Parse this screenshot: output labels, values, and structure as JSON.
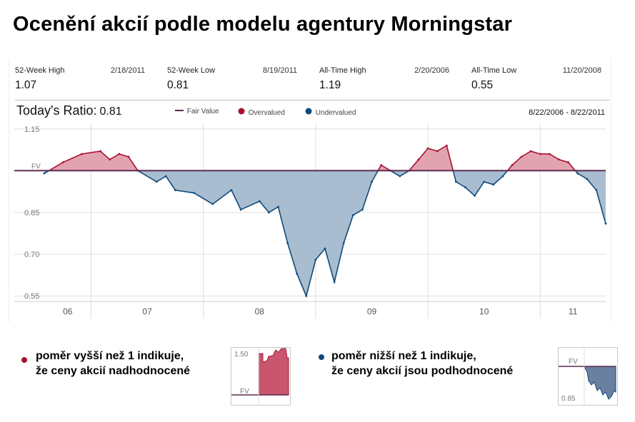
{
  "title": "Ocenění akcií podle modelu agentury Morningstar",
  "stats": [
    {
      "label": "52-Week High",
      "date": "2/18/2011",
      "value": "1.07"
    },
    {
      "label": "52-Week Low",
      "date": "8/19/2011",
      "value": "0.81"
    },
    {
      "label": "All-Time High",
      "date": "2/20/2006",
      "value": "1.19"
    },
    {
      "label": "All-Time Low",
      "date": "11/20/2008",
      "value": "0.55"
    }
  ],
  "ratio": {
    "label": "Today's Ratio:",
    "value": "0.81"
  },
  "legend": {
    "fair_value": "Fair Value",
    "overvalued": "Overvalued",
    "undervalued": "Undervalued"
  },
  "date_range": "8/22/2006 - 8/22/2011",
  "colors": {
    "overvalued": "#a8102f",
    "undervalued": "#0f4a7a",
    "fair_value": "#5a2b4f",
    "overvalued_fill": "#e2a3b1",
    "undervalued_fill": "#a9bdd1"
  },
  "chart_data": {
    "type": "area",
    "fair_value_level": 1.0,
    "fair_value_label": "FV",
    "ylim": [
      0.53,
      1.17
    ],
    "yticks": [
      "1.15",
      "0.85",
      "0.70",
      "0.55"
    ],
    "x_labels": [
      "06",
      "07",
      "08",
      "09",
      "10",
      "11"
    ],
    "x": [
      "2006-08",
      "2006-10",
      "2006-12",
      "2007-02",
      "2007-03",
      "2007-04",
      "2007-05",
      "2007-06",
      "2007-08",
      "2007-09",
      "2007-10",
      "2007-12",
      "2008-02",
      "2008-04",
      "2008-05",
      "2008-07",
      "2008-08",
      "2008-09",
      "2008-10",
      "2008-11",
      "2008-12",
      "2009-01",
      "2009-02",
      "2009-03",
      "2009-04",
      "2009-05",
      "2009-06",
      "2009-07",
      "2009-08",
      "2009-09",
      "2009-10",
      "2009-11",
      "2009-12",
      "2010-01",
      "2010-02",
      "2010-03",
      "2010-04",
      "2010-05",
      "2010-06",
      "2010-07",
      "2010-08",
      "2010-09",
      "2010-10",
      "2010-11",
      "2010-12",
      "2011-01",
      "2011-02",
      "2011-03",
      "2011-04",
      "2011-05",
      "2011-06",
      "2011-07",
      "2011-08"
    ],
    "values": [
      0.99,
      1.03,
      1.06,
      1.07,
      1.04,
      1.06,
      1.05,
      1.0,
      0.96,
      0.98,
      0.93,
      0.92,
      0.88,
      0.93,
      0.86,
      0.89,
      0.85,
      0.87,
      0.74,
      0.63,
      0.55,
      0.68,
      0.72,
      0.6,
      0.74,
      0.84,
      0.86,
      0.96,
      1.02,
      1.0,
      0.98,
      1.0,
      1.04,
      1.08,
      1.07,
      1.09,
      0.96,
      0.94,
      0.91,
      0.96,
      0.95,
      0.98,
      1.02,
      1.05,
      1.07,
      1.06,
      1.06,
      1.04,
      1.03,
      0.99,
      0.97,
      0.93,
      0.81
    ]
  },
  "notes": {
    "over": {
      "line1": "poměr vyšší než  1 indikuje,",
      "line2": "že ceny akcií nadhodnocené",
      "thumb_top": "1.50",
      "thumb_fv": "FV"
    },
    "under": {
      "line1": "poměr nižší než 1 indikuje,",
      "line2": "že ceny akcií jsou podhodnocené",
      "thumb_fv": "FV",
      "thumb_low": "0.85"
    }
  }
}
